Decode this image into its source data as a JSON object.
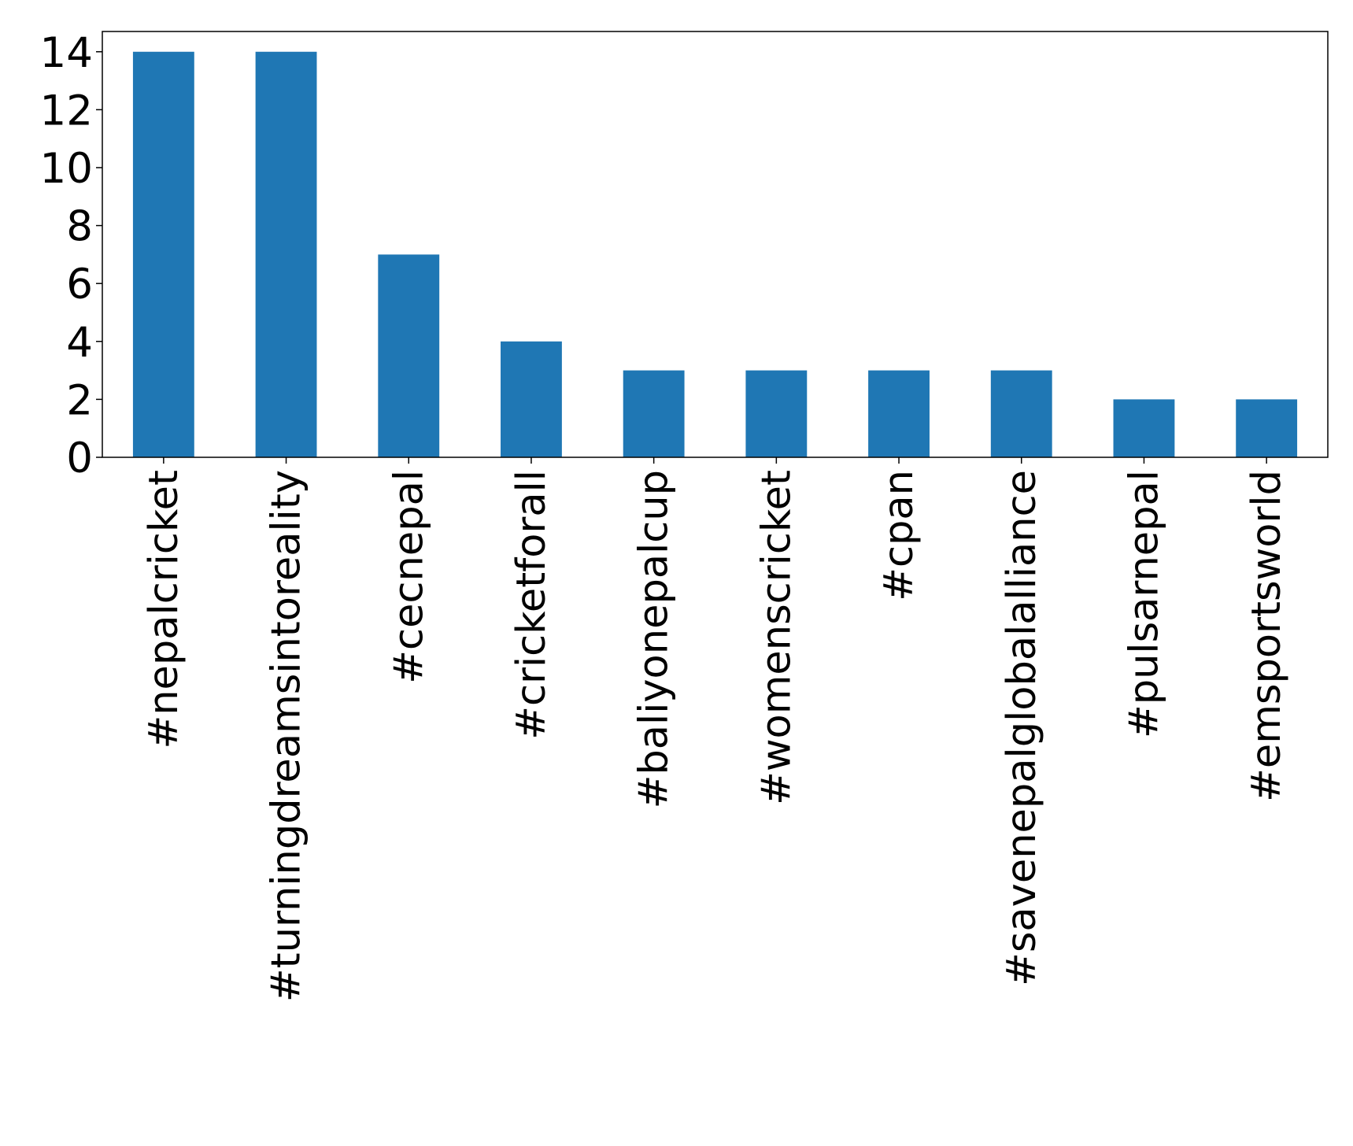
{
  "chart_data": {
    "type": "bar",
    "title": "",
    "xlabel": "",
    "ylabel": "",
    "categories": [
      "#nepalcricket",
      "#turningdreamsintoreality",
      "#cecnepal",
      "#cricketforall",
      "#baliyonepalcup",
      "#womenscricket",
      "#cpan",
      "#savenepalglobalalliance",
      "#pulsarnepal",
      "#emsportsworld"
    ],
    "values": [
      14,
      14,
      7,
      4,
      3,
      3,
      3,
      3,
      2,
      2
    ],
    "ylim": [
      0,
      14.7
    ],
    "yticks": [
      0,
      2,
      4,
      6,
      8,
      10,
      12,
      14
    ],
    "grid": false,
    "legend": "none",
    "bar_color": "#1f77b4"
  }
}
